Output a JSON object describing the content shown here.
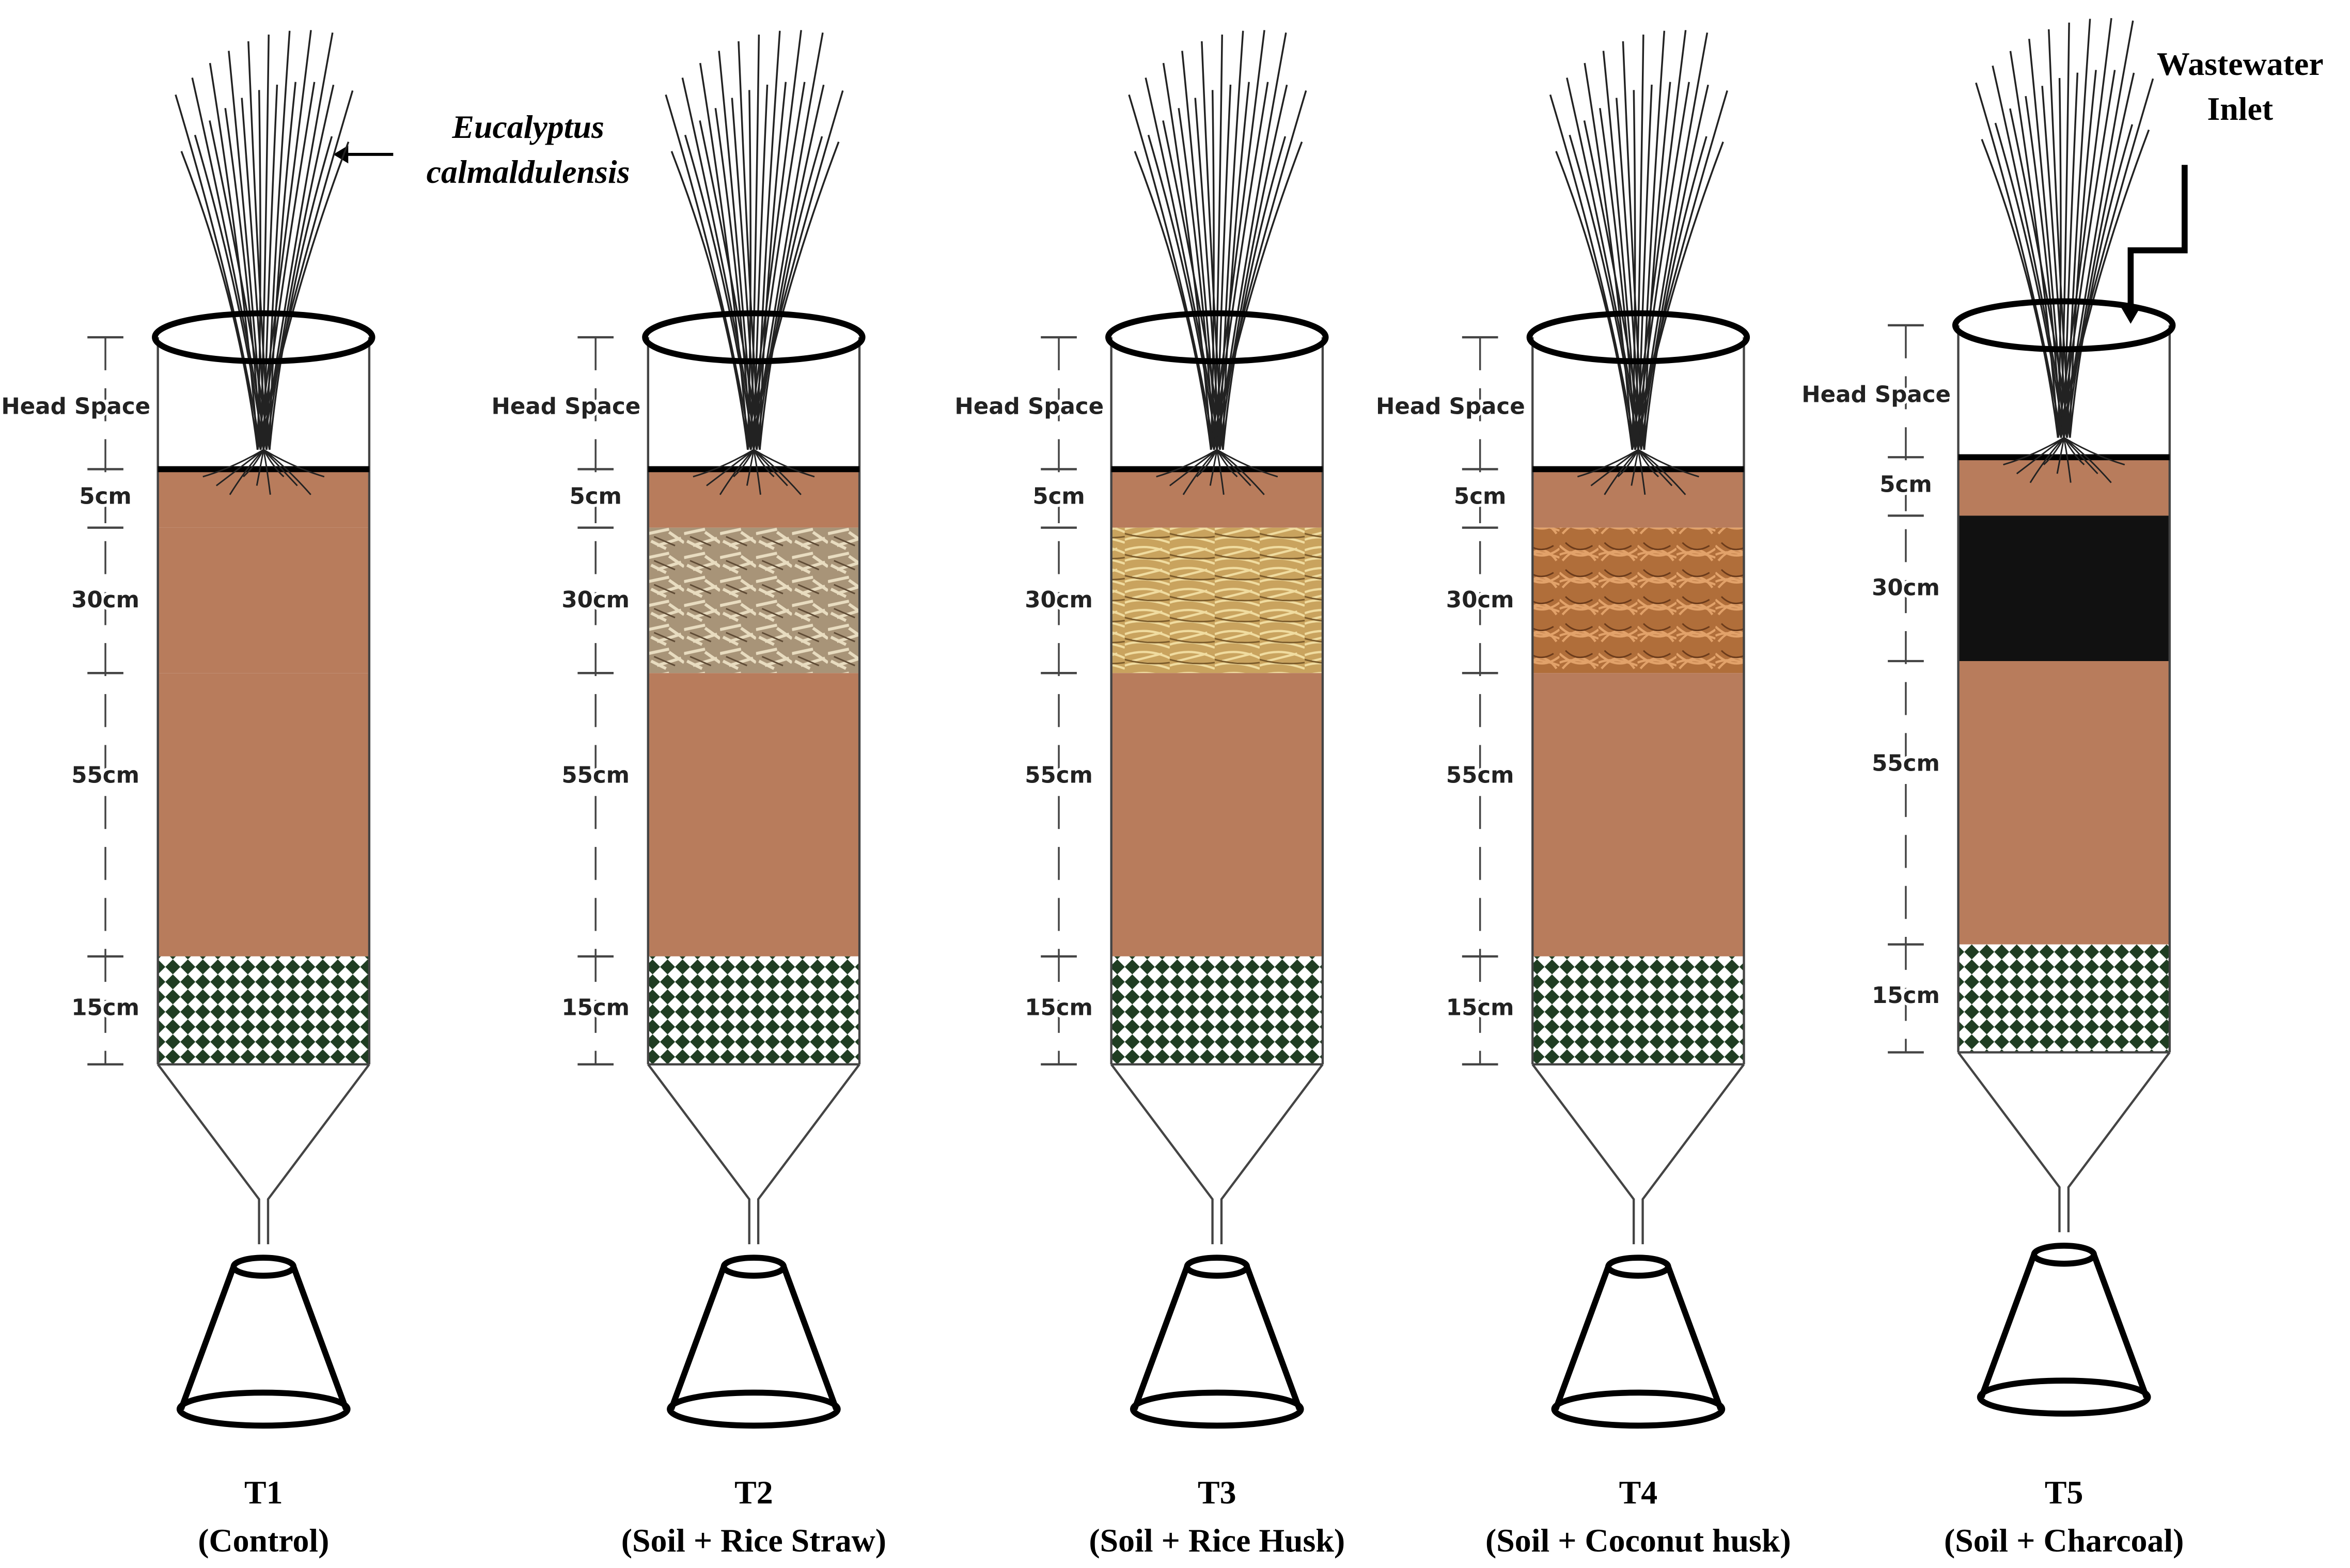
{
  "annotations": {
    "plant_label": [
      "Eucalyptus",
      "calmaldulensis"
    ],
    "inlet_label": [
      "Wastewater",
      "Inlet"
    ]
  },
  "columns": [
    {
      "id": "T1",
      "treatment": "(Control)",
      "layers": [
        "Head Space",
        "5cm",
        "30cm",
        "55cm",
        "15cm"
      ]
    },
    {
      "id": "T2",
      "treatment": "(Soil + Rice Straw)",
      "layers": [
        "Head Space",
        "5cm",
        "30cm",
        "55cm",
        "15cm"
      ]
    },
    {
      "id": "T3",
      "treatment": "(Soil + Rice Husk)",
      "layers": [
        "Head Space",
        "5cm",
        "30cm",
        "55cm",
        "15cm"
      ]
    },
    {
      "id": "T4",
      "treatment": "(Soil + Coconut husk)",
      "layers": [
        "Head Space",
        "5cm",
        "30cm",
        "55cm",
        "15cm"
      ]
    },
    {
      "id": "T5",
      "treatment": "(Soil + Charcoal)",
      "layers": [
        "Head Space",
        "5cm",
        "30cm",
        "55cm",
        "15cm"
      ]
    }
  ]
}
